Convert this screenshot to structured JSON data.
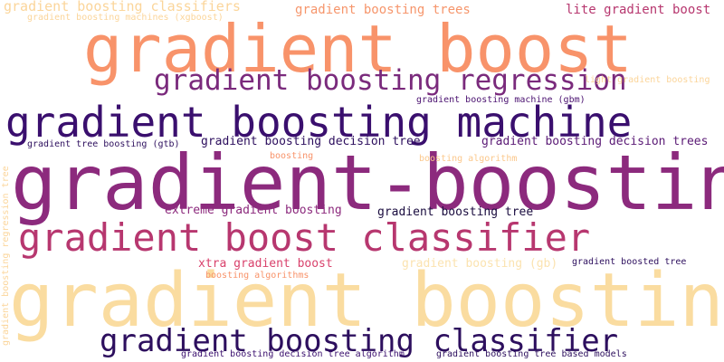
{
  "words": [
    {
      "text": "gradient boost",
      "color": "#F8936A"
    },
    {
      "text": "gradient-boosting",
      "color": "#8C2A7D"
    },
    {
      "text": "gradient boosting",
      "color": "#FADCA0"
    },
    {
      "text": "gradient boosting machine",
      "color": "#3A0F6E"
    },
    {
      "text": "gradient boost classifier",
      "color": "#B7376F"
    },
    {
      "text": "gradient boosting regression",
      "color": "#7A2A7C"
    },
    {
      "text": "gradient boosting classifier",
      "color": "#2D0F5E"
    },
    {
      "text": "gradient boosting classifiers",
      "color": "#FBD59A"
    },
    {
      "text": "gradient boosting machines (xgboost)",
      "color": "#FBD59A"
    },
    {
      "text": "gradient boosting trees",
      "color": "#F6966C"
    },
    {
      "text": "lite gradient boost",
      "color": "#B7376F"
    },
    {
      "text": "light gradient boosting",
      "color": "#FBD59A"
    },
    {
      "text": "gradient boosting machine (gbm)",
      "color": "#4A1170"
    },
    {
      "text": "gradient tree boosting (gtb)",
      "color": "#2D0F5E"
    },
    {
      "text": "gradient boosting decision tree",
      "color": "#2D0F5E"
    },
    {
      "text": "gradient boosting decision trees",
      "color": "#5B1B76"
    },
    {
      "text": "boosting",
      "color": "#F8936A"
    },
    {
      "text": "boosting algorithm",
      "color": "#FBC88C"
    },
    {
      "text": "extreme gradient boosting",
      "color": "#8C2A7D"
    },
    {
      "text": "gradient boosting tree",
      "color": "#1A0C3F"
    },
    {
      "text": "xtra gradient boost",
      "color": "#D9426C"
    },
    {
      "text": "gradient boosting (gb)",
      "color": "#FBE3B0"
    },
    {
      "text": "gradient boosted tree",
      "color": "#2D0F5E"
    },
    {
      "text": "boosting algorithms",
      "color": "#F8936A"
    },
    {
      "text": "gradient boosting decision tree algorithm",
      "color": "#3A0F6E"
    },
    {
      "text": "gradient boosting tree based models",
      "color": "#2D0F5E"
    },
    {
      "text": "gradient boosting regression tree",
      "color": "#FBD59A"
    }
  ]
}
